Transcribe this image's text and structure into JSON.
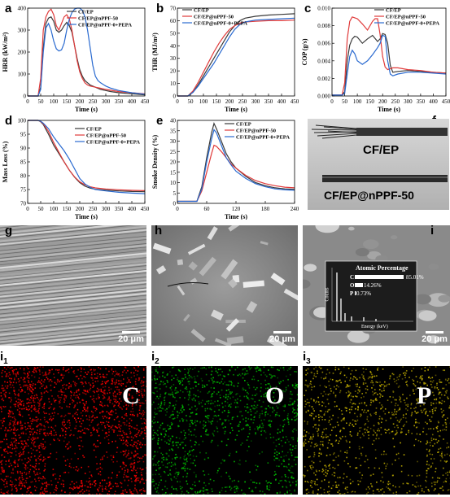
{
  "panel_labels": {
    "a": "a",
    "b": "b",
    "c": "c",
    "d": "d",
    "e": "e",
    "f": "f",
    "g": "g",
    "h": "h",
    "i": "i",
    "i1": "i",
    "i1_sub": "1",
    "i2": "i",
    "i2_sub": "2",
    "i3": "i",
    "i3_sub": "3"
  },
  "colors": {
    "cfep": "#3a3a3a",
    "npff50": "#e03a3a",
    "pepa": "#2a6ad0"
  },
  "legend": [
    "CF/EP",
    "CF/EP@nPPF-50",
    "CF/EP@nPPF-0+PEPA"
  ],
  "chart_data": [
    {
      "id": "a",
      "type": "line",
      "ylabel": "HRR (kW/m²)",
      "xlabel": "Time (s)",
      "xlim": [
        0,
        450
      ],
      "ylim": [
        0,
        400
      ],
      "xticks": [
        0,
        50,
        100,
        150,
        200,
        250,
        300,
        350,
        400,
        450
      ],
      "yticks": [
        0,
        100,
        200,
        300,
        400
      ],
      "ytick_labels": [
        "0",
        "100",
        "200",
        "300",
        "400"
      ],
      "series": [
        {
          "name": "CF/EP",
          "x": [
            0,
            40,
            50,
            60,
            70,
            80,
            90,
            100,
            110,
            120,
            130,
            140,
            150,
            160,
            170,
            180,
            190,
            200,
            210,
            220,
            230,
            240,
            260,
            280,
            300,
            320,
            350,
            400,
            450
          ],
          "y": [
            0,
            0,
            40,
            220,
            330,
            355,
            360,
            340,
            300,
            290,
            300,
            320,
            335,
            320,
            290,
            230,
            170,
            120,
            90,
            70,
            60,
            50,
            40,
            30,
            25,
            20,
            15,
            10,
            5
          ]
        },
        {
          "name": "CF/EP@nPPF-50",
          "x": [
            0,
            40,
            50,
            60,
            70,
            80,
            90,
            100,
            110,
            120,
            130,
            140,
            150,
            160,
            170,
            180,
            190,
            200,
            210,
            220,
            230,
            240,
            260,
            280,
            300,
            350,
            400,
            450
          ],
          "y": [
            0,
            0,
            80,
            300,
            360,
            385,
            395,
            370,
            320,
            300,
            330,
            360,
            370,
            350,
            300,
            230,
            160,
            110,
            80,
            60,
            50,
            45,
            40,
            35,
            30,
            20,
            15,
            10
          ]
        },
        {
          "name": "CF/EP@nPPF-0+PEPA",
          "x": [
            0,
            40,
            50,
            60,
            70,
            80,
            90,
            100,
            110,
            120,
            130,
            140,
            150,
            160,
            170,
            180,
            190,
            200,
            210,
            220,
            230,
            240,
            250,
            260,
            270,
            280,
            300,
            320,
            350,
            400,
            450
          ],
          "y": [
            0,
            0,
            30,
            200,
            310,
            330,
            300,
            250,
            215,
            205,
            210,
            240,
            300,
            350,
            380,
            395,
            400,
            400,
            390,
            360,
            300,
            220,
            140,
            90,
            70,
            60,
            45,
            35,
            25,
            15,
            8
          ]
        }
      ]
    },
    {
      "id": "b",
      "type": "line",
      "ylabel": "THR (MJ/m²)",
      "xlabel": "Time (s)",
      "xlim": [
        0,
        450
      ],
      "ylim": [
        0,
        70
      ],
      "xticks": [
        0,
        50,
        100,
        150,
        200,
        250,
        300,
        350,
        400,
        450
      ],
      "yticks": [
        0,
        10,
        20,
        30,
        40,
        50,
        60,
        70
      ],
      "ytick_labels": [
        "0",
        "10",
        "20",
        "30",
        "40",
        "50",
        "60",
        "70"
      ],
      "series": [
        {
          "name": "CF/EP",
          "x": [
            0,
            40,
            60,
            80,
            100,
            120,
            140,
            160,
            180,
            200,
            220,
            240,
            260,
            300,
            350,
            400,
            450
          ],
          "y": [
            0,
            0,
            3,
            9,
            16,
            23,
            30,
            37,
            44,
            51,
            56,
            60,
            62,
            63.5,
            64.5,
            65,
            65.5
          ]
        },
        {
          "name": "CF/EP@nPPF-50",
          "x": [
            0,
            40,
            60,
            80,
            100,
            120,
            140,
            160,
            180,
            200,
            220,
            240,
            260,
            300,
            350,
            400,
            450
          ],
          "y": [
            0,
            0,
            4,
            11,
            19,
            27,
            35,
            42,
            48,
            53,
            56,
            58,
            59,
            59.5,
            60,
            60,
            60.5
          ]
        },
        {
          "name": "CF/EP@nPPF-0+PEPA",
          "x": [
            0,
            40,
            60,
            80,
            100,
            120,
            140,
            160,
            180,
            200,
            220,
            240,
            260,
            300,
            350,
            400,
            450
          ],
          "y": [
            0,
            0,
            3,
            8,
            14,
            20,
            26,
            33,
            40,
            47,
            53,
            57,
            59,
            60.5,
            61,
            61.5,
            62
          ]
        }
      ]
    },
    {
      "id": "c",
      "type": "line",
      "ylabel": "COP (g/s)",
      "xlabel": "Time (s)",
      "xlim": [
        0,
        450
      ],
      "ylim": [
        0.0,
        0.01
      ],
      "xticks": [
        0,
        50,
        100,
        150,
        200,
        250,
        300,
        350,
        400,
        450
      ],
      "yticks": [
        0.0,
        0.002,
        0.004,
        0.006,
        0.008,
        0.01
      ],
      "ytick_labels": [
        "0.000",
        "0.002",
        "0.004",
        "0.006",
        "0.008",
        "0.010"
      ],
      "series": [
        {
          "name": "CF/EP",
          "x": [
            0,
            40,
            50,
            60,
            70,
            80,
            90,
            100,
            120,
            140,
            160,
            180,
            190,
            200,
            210,
            220,
            230,
            240,
            260,
            300,
            350,
            400,
            450
          ],
          "y": [
            0.0001,
            0.0001,
            0.0005,
            0.004,
            0.0058,
            0.0065,
            0.0068,
            0.0067,
            0.006,
            0.0065,
            0.0069,
            0.0062,
            0.0065,
            0.0071,
            0.007,
            0.006,
            0.0035,
            0.0027,
            0.0028,
            0.0029,
            0.0028,
            0.0027,
            0.0026
          ]
        },
        {
          "name": "CF/EP@nPPF-50",
          "x": [
            0,
            40,
            50,
            60,
            70,
            80,
            90,
            100,
            120,
            140,
            160,
            170,
            180,
            190,
            200,
            210,
            220,
            230,
            240,
            260,
            300,
            350,
            400,
            450
          ],
          "y": [
            0.0001,
            0.0001,
            0.0015,
            0.0065,
            0.0085,
            0.009,
            0.0089,
            0.0088,
            0.0082,
            0.0075,
            0.0085,
            0.0088,
            0.0088,
            0.007,
            0.0045,
            0.0033,
            0.003,
            0.0031,
            0.0032,
            0.0032,
            0.003,
            0.0029,
            0.0027,
            0.0026
          ]
        },
        {
          "name": "CF/EP@nPPF-0+PEPA",
          "x": [
            0,
            40,
            50,
            60,
            70,
            80,
            90,
            100,
            120,
            140,
            160,
            180,
            190,
            200,
            210,
            220,
            230,
            240,
            260,
            300,
            350,
            400,
            450
          ],
          "y": [
            0.0001,
            0.0001,
            0.0003,
            0.0025,
            0.0045,
            0.0052,
            0.0048,
            0.004,
            0.0036,
            0.004,
            0.0047,
            0.0055,
            0.006,
            0.0069,
            0.0068,
            0.004,
            0.0025,
            0.0023,
            0.0025,
            0.0027,
            0.0027,
            0.0026,
            0.0025
          ]
        }
      ]
    },
    {
      "id": "d",
      "type": "line",
      "ylabel": "Mass Loss (%)",
      "xlabel": "Time (s)",
      "xlim": [
        0,
        450
      ],
      "ylim": [
        70,
        100
      ],
      "xticks": [
        0,
        50,
        100,
        150,
        200,
        250,
        300,
        350,
        400,
        450
      ],
      "yticks": [
        70,
        75,
        80,
        85,
        90,
        95,
        100
      ],
      "ytick_labels": [
        "70",
        "75",
        "80",
        "85",
        "90",
        "95",
        "100"
      ],
      "series": [
        {
          "name": "CF/EP",
          "x": [
            0,
            40,
            50,
            60,
            80,
            100,
            120,
            140,
            160,
            180,
            200,
            220,
            240,
            260,
            300,
            350,
            400,
            450
          ],
          "y": [
            100,
            100,
            99.5,
            98.5,
            95,
            91,
            88,
            85,
            82,
            79.5,
            77.5,
            76.2,
            75.5,
            75.1,
            74.8,
            74.5,
            74.3,
            74.2
          ]
        },
        {
          "name": "CF/EP@nPPF-50",
          "x": [
            0,
            40,
            50,
            60,
            80,
            100,
            120,
            140,
            160,
            180,
            200,
            220,
            240,
            260,
            300,
            350,
            400,
            450
          ],
          "y": [
            100,
            100,
            99.6,
            98.8,
            96,
            92,
            88.5,
            85,
            82,
            79.6,
            77.8,
            76.7,
            76,
            75.6,
            75.2,
            74.9,
            74.7,
            74.6
          ]
        },
        {
          "name": "CF/EP@nPPF-0+PEPA",
          "x": [
            0,
            40,
            50,
            60,
            80,
            100,
            120,
            140,
            160,
            180,
            200,
            220,
            240,
            260,
            300,
            350,
            400,
            450
          ],
          "y": [
            100,
            100,
            99.7,
            99,
            97,
            94,
            91.5,
            89,
            86,
            82.5,
            79,
            77,
            75.8,
            75,
            74.5,
            74,
            73.7,
            73.5
          ]
        }
      ]
    },
    {
      "id": "e",
      "type": "line",
      "ylabel": "Smoke Density (%)",
      "xlabel": "Time (s)",
      "xlim": [
        0,
        240
      ],
      "ylim": [
        0,
        40
      ],
      "xticks": [
        0,
        60,
        120,
        180,
        240
      ],
      "yticks": [
        0,
        5,
        10,
        15,
        20,
        25,
        30,
        35,
        40
      ],
      "ytick_labels": [
        "0",
        "5",
        "10",
        "15",
        "20",
        "25",
        "30",
        "35",
        "40"
      ],
      "series": [
        {
          "name": "CF/EP",
          "x": [
            0,
            20,
            40,
            50,
            60,
            70,
            75,
            80,
            90,
            100,
            110,
            120,
            140,
            160,
            180,
            200,
            220,
            240
          ],
          "y": [
            1,
            1,
            1,
            8,
            22,
            34,
            38.5,
            36,
            30,
            24,
            20,
            17,
            13,
            10,
            8.5,
            7.5,
            7,
            6.8
          ]
        },
        {
          "name": "CF/EP@nPPF-50",
          "x": [
            0,
            20,
            40,
            50,
            60,
            70,
            75,
            80,
            90,
            100,
            110,
            120,
            140,
            160,
            180,
            200,
            220,
            240
          ],
          "y": [
            1,
            1,
            1,
            6,
            15,
            24,
            28,
            27.5,
            25,
            22,
            19,
            17,
            13.5,
            11,
            9.5,
            8.5,
            7.8,
            7.5
          ]
        },
        {
          "name": "CF/EP@nPPF-0+PEPA",
          "x": [
            0,
            20,
            40,
            50,
            60,
            70,
            75,
            80,
            90,
            100,
            110,
            120,
            140,
            160,
            180,
            200,
            220,
            240
          ],
          "y": [
            1,
            1,
            1,
            7,
            20,
            31,
            35.5,
            34,
            28,
            22,
            18.5,
            15.5,
            12,
            9.5,
            8,
            7,
            6.5,
            6.3
          ]
        }
      ]
    }
  ],
  "photo_f": {
    "label1": "CF/EP",
    "label2": "CF/EP@nPPF-50"
  },
  "sem": {
    "scale_g": "20 μm",
    "scale_h": "20 μm",
    "scale_i": "20 μm",
    "eds_title": "Atomic Percentage",
    "eds_rows": [
      {
        "el": "C",
        "val": "85.01%"
      },
      {
        "el": "O",
        "val": "14.26%"
      },
      {
        "el": "P",
        "val": "0.73%"
      }
    ],
    "eds_ylabel": "Counts",
    "eds_xlabel": "Energy (keV)"
  },
  "maps": {
    "c": "C",
    "o": "O",
    "p": "P"
  }
}
